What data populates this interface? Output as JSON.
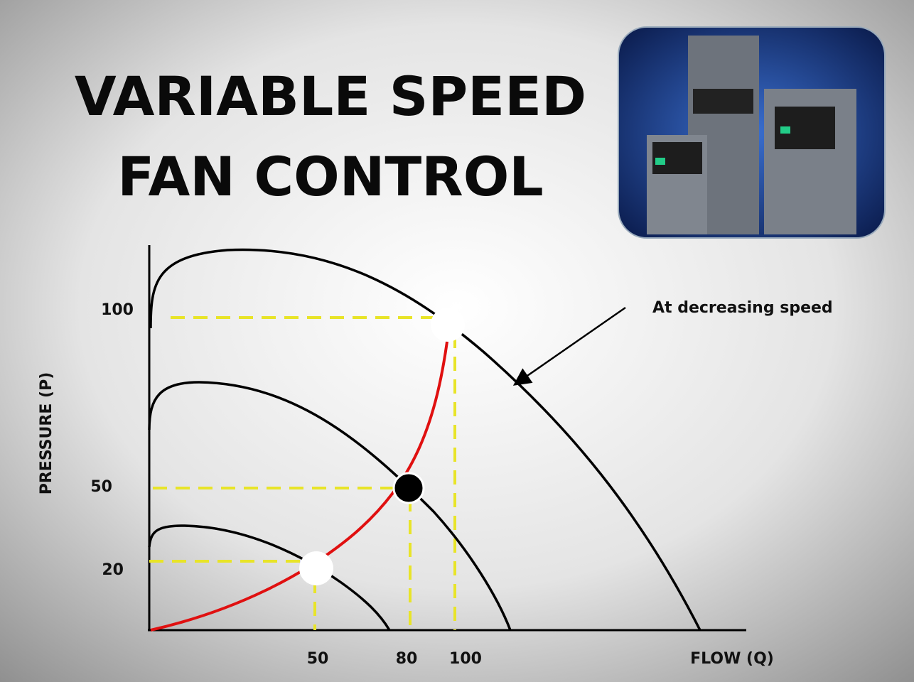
{
  "title": {
    "line1": "VARIABLE SPEED",
    "line2": "FAN CONTROL"
  },
  "diagram": {
    "y_axis_label": "PRESSURE (P)",
    "x_axis_label": "FLOW (Q)",
    "y_tick_labels": [
      "100",
      "50",
      "20"
    ],
    "x_tick_labels": [
      "50",
      "80",
      "100"
    ],
    "annotation": "At decreasing speed"
  }
}
